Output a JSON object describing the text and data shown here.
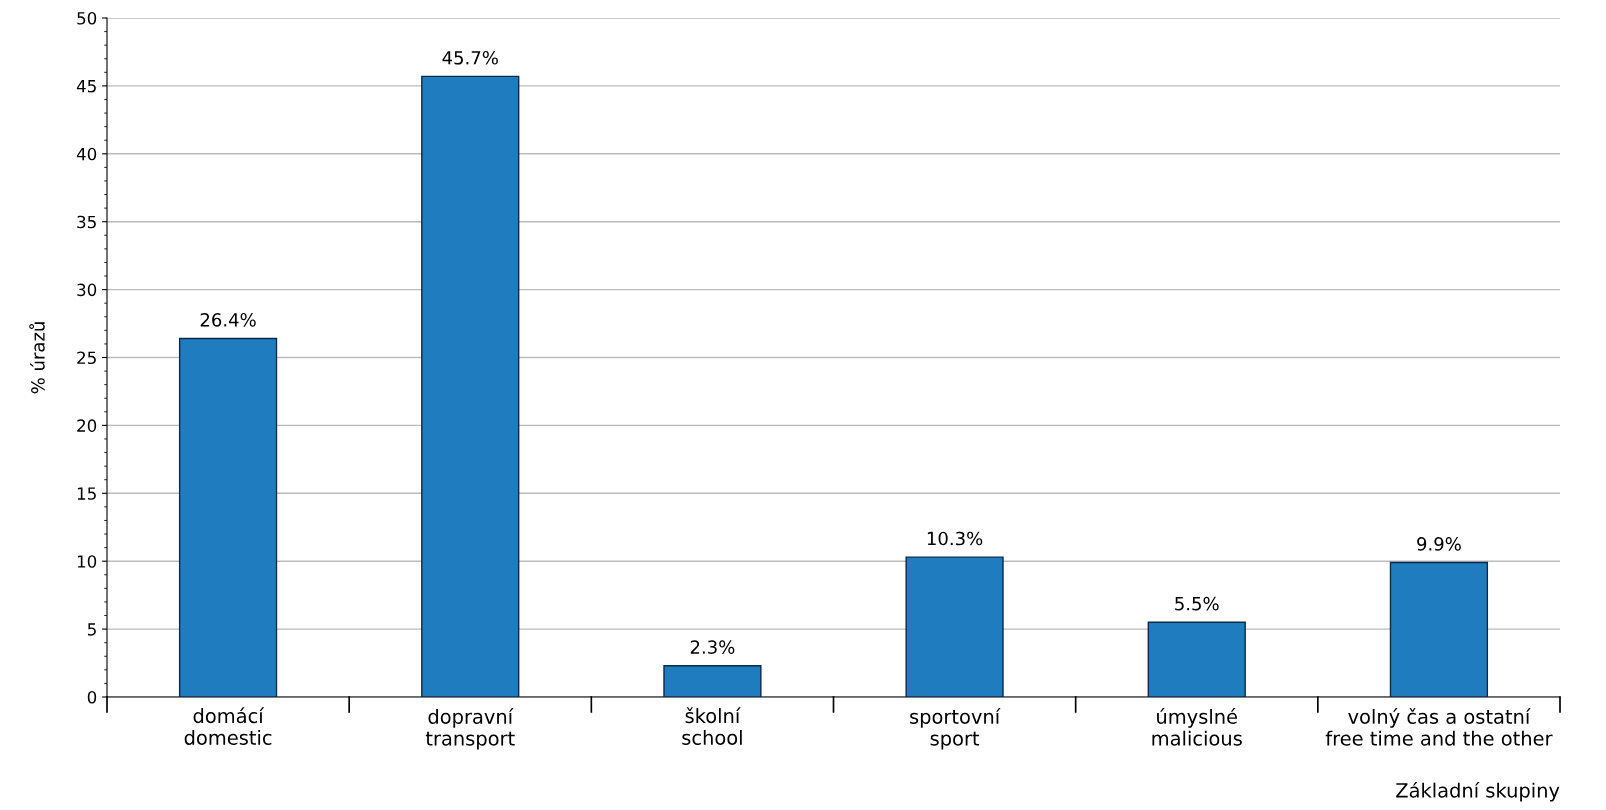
{
  "chart_data": {
    "type": "bar",
    "ylabel": "% úrazů",
    "xlabel": "Základní skupiny",
    "categories": [
      "domácí\ndomestic",
      "dopravní\ntransport",
      "školní\nschool",
      "sportovní\nsport",
      "úmyslné\nmalicious",
      "volný čas a ostatní\nfree time and the other"
    ],
    "values": [
      26.4,
      45.7,
      2.3,
      10.3,
      5.5,
      9.9
    ],
    "value_labels": [
      "26.4%",
      "45.7%",
      "2.3%",
      "10.3%",
      "5.5%",
      "9.9%"
    ],
    "color": "#1f7dbf",
    "ylim": [
      0,
      50
    ],
    "yticks": [
      0,
      5,
      10,
      15,
      20,
      25,
      30,
      35,
      40,
      45,
      50
    ],
    "grid": "y",
    "legend": false
  }
}
